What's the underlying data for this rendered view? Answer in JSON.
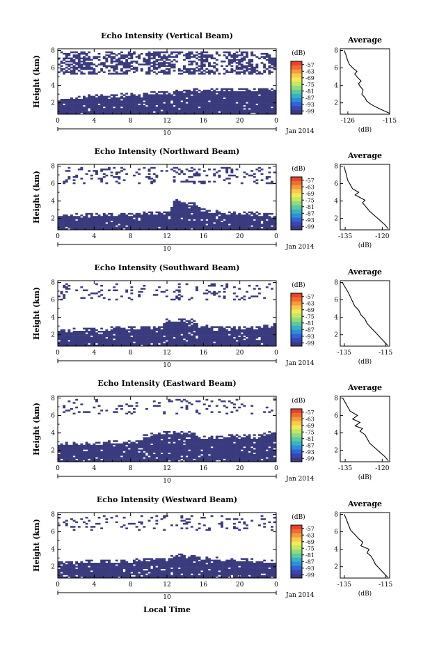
{
  "x_axis": {
    "ticks": [
      "0",
      "4",
      "8",
      "12",
      "16",
      "20",
      "0"
    ],
    "day_label": "10",
    "date_label": "Jan 2014",
    "xlabel": "Local Time"
  },
  "colorbar": {
    "unit": "(dB)",
    "labels": [
      "-57",
      "-63",
      "-69",
      "-75",
      "-81",
      "-87",
      "-93",
      "-99"
    ],
    "colors": [
      "#e8432b",
      "#f26b2f",
      "#f79a38",
      "#fbc848",
      "#f2ea55",
      "#c3ea5e",
      "#8fdc7a",
      "#5ccaa0",
      "#36b2c8",
      "#2d8edb",
      "#2f64d8",
      "#3a44b8",
      "#3a3b7e"
    ]
  },
  "chart_data": [
    {
      "type": "heatmap",
      "title": "Echo Intensity (Vertical Beam)",
      "ylabel": "Height (km)",
      "yticks": [
        "2",
        "4",
        "6",
        "8"
      ],
      "ylim": [
        0.7,
        8.2
      ],
      "xlim": [
        0,
        24
      ],
      "color_scale_db": [
        -99,
        -57
      ],
      "dominant_color": "#3a3b7e",
      "surface_layer_top_km": [
        [
          0,
          2.3
        ],
        [
          3,
          2.6
        ],
        [
          6,
          2.7
        ],
        [
          9,
          2.9
        ],
        [
          12,
          3.0
        ],
        [
          15,
          3.4
        ],
        [
          18,
          3.4
        ],
        [
          21,
          3.3
        ],
        [
          24,
          3.4
        ]
      ],
      "speckle_band_km": [
        5.4,
        8.0
      ],
      "speckle_density": 0.45,
      "average_profile": {
        "title": "Average",
        "xlabel": "(dB)",
        "xticks": [
          "-126",
          "-115"
        ],
        "xlim": [
          -128,
          -115
        ],
        "ylim": [
          0.7,
          8.2
        ],
        "yticks": [
          "2",
          "4",
          "6",
          "8"
        ],
        "x": [
          -115,
          -116.5,
          -118.0,
          -119.8,
          -121.0,
          -121.5,
          -122.3,
          -122.0,
          -122.8,
          -123.2,
          -122.5,
          -123.4,
          -124.2,
          -123.6,
          -124.7,
          -125.6,
          -126.1,
          -126.5,
          -127.0
        ],
        "y": [
          0.8,
          1.1,
          1.4,
          1.8,
          2.2,
          2.6,
          3.0,
          3.5,
          3.9,
          4.2,
          4.5,
          4.9,
          5.3,
          5.6,
          6.0,
          6.4,
          6.9,
          7.5,
          8.0
        ]
      }
    },
    {
      "type": "heatmap",
      "title": "Echo Intensity (Northward Beam)",
      "ylabel": "Height (km)",
      "yticks": [
        "2",
        "4",
        "6",
        "8"
      ],
      "ylim": [
        0.7,
        8.2
      ],
      "xlim": [
        0,
        24
      ],
      "color_scale_db": [
        -99,
        -57
      ],
      "dominant_color": "#3a3b7e",
      "surface_layer_top_km": [
        [
          0,
          2.1
        ],
        [
          3,
          2.3
        ],
        [
          6,
          2.3
        ],
        [
          9,
          2.4
        ],
        [
          12,
          2.5
        ],
        [
          13,
          4.0
        ],
        [
          15,
          3.5
        ],
        [
          16,
          2.8
        ],
        [
          19,
          2.5
        ],
        [
          21,
          2.5
        ],
        [
          24,
          2.2
        ]
      ],
      "speckle_band_km": [
        6.0,
        8.1
      ],
      "speckle_density": 0.15,
      "average_profile": {
        "title": "Average",
        "xlabel": "(dB)",
        "xticks": [
          "-135",
          "-120"
        ],
        "xlim": [
          -137,
          -117
        ],
        "ylim": [
          0.7,
          8.2
        ],
        "yticks": [
          "2",
          "4",
          "6",
          "8"
        ],
        "x": [
          -117.5,
          -119.0,
          -121.0,
          -123.0,
          -125.0,
          -126.5,
          -128.0,
          -127.0,
          -129.0,
          -131.0,
          -129.5,
          -132.0,
          -133.0,
          -134.0,
          -134.5,
          -135.0,
          -135.5
        ],
        "y": [
          0.8,
          1.3,
          1.8,
          2.3,
          2.8,
          3.3,
          3.8,
          4.1,
          4.4,
          4.7,
          5.0,
          5.4,
          5.9,
          6.4,
          7.0,
          7.5,
          8.0
        ]
      }
    },
    {
      "type": "heatmap",
      "title": "Echo Intensity (Southward Beam)",
      "ylabel": "Height (km)",
      "yticks": [
        "2",
        "4",
        "6",
        "8"
      ],
      "ylim": [
        0.7,
        8.2
      ],
      "xlim": [
        0,
        24
      ],
      "color_scale_db": [
        -99,
        -57
      ],
      "dominant_color": "#3a3b7e",
      "surface_layer_top_km": [
        [
          0,
          2.3
        ],
        [
          3,
          2.5
        ],
        [
          6,
          2.6
        ],
        [
          9,
          2.6
        ],
        [
          11.5,
          2.7
        ],
        [
          12,
          3.5
        ],
        [
          15,
          3.5
        ],
        [
          15.5,
          2.8
        ],
        [
          19,
          2.7
        ],
        [
          22,
          2.7
        ],
        [
          24,
          3.0
        ]
      ],
      "speckle_band_km": [
        6.0,
        8.1
      ],
      "speckle_density": 0.12,
      "average_profile": {
        "title": "Average",
        "xlabel": "(dB)",
        "xticks": [
          "-135",
          "-115"
        ],
        "xlim": [
          -137,
          -113
        ],
        "ylim": [
          0.7,
          8.2
        ],
        "yticks": [
          "2",
          "4",
          "6",
          "8"
        ],
        "x": [
          -114,
          -116,
          -118,
          -120,
          -122,
          -124,
          -125,
          -127,
          -128,
          -130,
          -131,
          -132,
          -133,
          -134,
          -135,
          -136
        ],
        "y": [
          0.8,
          1.3,
          1.8,
          2.3,
          2.8,
          3.3,
          3.8,
          4.3,
          4.8,
          5.3,
          5.8,
          6.3,
          6.8,
          7.2,
          7.6,
          8.0
        ]
      }
    },
    {
      "type": "heatmap",
      "title": "Echo Intensity (Eastward Beam)",
      "ylabel": "Height (km)",
      "yticks": [
        "2",
        "4",
        "6",
        "8"
      ],
      "ylim": [
        0.7,
        8.2
      ],
      "xlim": [
        0,
        24
      ],
      "color_scale_db": [
        -99,
        -57
      ],
      "dominant_color": "#3a3b7e",
      "surface_layer_top_km": [
        [
          0,
          2.6
        ],
        [
          3,
          2.6
        ],
        [
          6,
          2.8
        ],
        [
          9,
          2.9
        ],
        [
          9.5,
          3.5
        ],
        [
          12,
          4.0
        ],
        [
          15,
          4.0
        ],
        [
          16,
          3.3
        ],
        [
          19,
          3.5
        ],
        [
          22,
          3.6
        ],
        [
          24,
          4.0
        ]
      ],
      "speckle_band_km": [
        6.3,
        8.1
      ],
      "speckle_density": 0.1,
      "average_profile": {
        "title": "Average",
        "xlabel": "(dB)",
        "xticks": [
          "-135",
          "-120"
        ],
        "xlim": [
          -137,
          -117
        ],
        "ylim": [
          0.7,
          8.2
        ],
        "yticks": [
          "2",
          "4",
          "6",
          "8"
        ],
        "x": [
          -117.5,
          -119,
          -121,
          -123,
          -125,
          -126,
          -127,
          -129,
          -128,
          -131,
          -129,
          -132,
          -130,
          -133,
          -134,
          -135,
          -136
        ],
        "y": [
          0.8,
          1.3,
          1.8,
          2.3,
          2.8,
          3.3,
          3.8,
          4.2,
          4.5,
          4.8,
          5.2,
          5.6,
          6.0,
          6.5,
          7.0,
          7.5,
          8.0
        ]
      }
    },
    {
      "type": "heatmap",
      "title": "Echo Intensity (Westward Beam)",
      "ylabel": "Height (km)",
      "yticks": [
        "2",
        "4",
        "6",
        "8"
      ],
      "ylim": [
        0.7,
        8.2
      ],
      "xlim": [
        0,
        24
      ],
      "color_scale_db": [
        -99,
        -57
      ],
      "dominant_color": "#3a3b7e",
      "surface_layer_top_km": [
        [
          0,
          2.3
        ],
        [
          3,
          2.4
        ],
        [
          6,
          2.5
        ],
        [
          9,
          2.6
        ],
        [
          12,
          2.7
        ],
        [
          13,
          3.2
        ],
        [
          15,
          3.0
        ],
        [
          16,
          2.8
        ],
        [
          20,
          2.7
        ],
        [
          22,
          2.6
        ],
        [
          24,
          2.4
        ]
      ],
      "speckle_band_km": [
        6.2,
        8.1
      ],
      "speckle_density": 0.14,
      "average_profile": {
        "title": "Average",
        "xlabel": "(dB)",
        "xticks": [
          "-135",
          "-115"
        ],
        "xlim": [
          -137,
          -113
        ],
        "ylim": [
          0.7,
          8.2
        ],
        "yticks": [
          "2",
          "4",
          "6",
          "8"
        ],
        "x": [
          -114,
          -116,
          -118,
          -120,
          -121,
          -122,
          -124,
          -123,
          -127,
          -126,
          -128,
          -130,
          -132,
          -133,
          -134,
          -135
        ],
        "y": [
          0.8,
          1.3,
          1.8,
          2.3,
          2.8,
          3.2,
          3.6,
          4.0,
          4.4,
          4.8,
          5.2,
          5.7,
          6.2,
          6.8,
          7.4,
          8.0
        ]
      }
    }
  ]
}
